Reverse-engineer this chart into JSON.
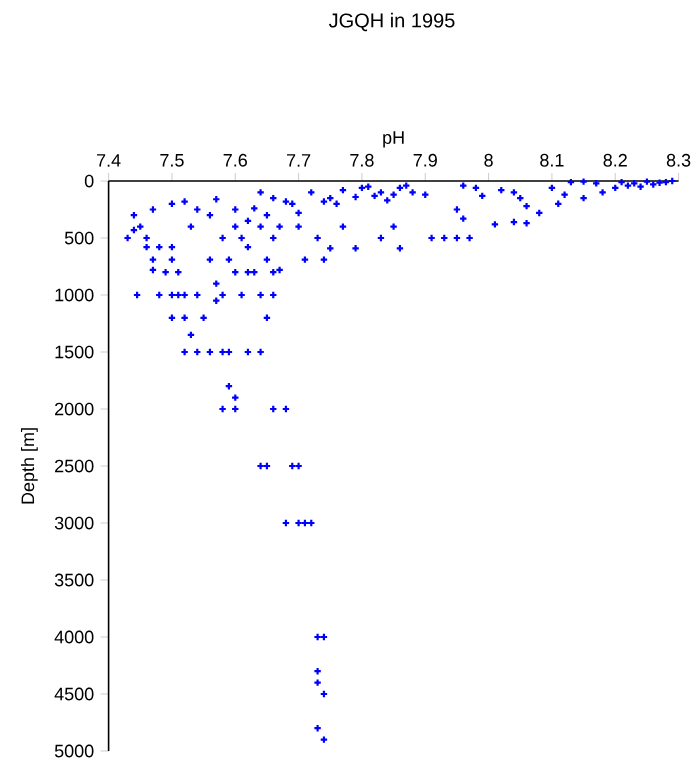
{
  "chart_data": {
    "type": "scatter",
    "title": "JGQH in 1995",
    "xlabel": "pH",
    "ylabel": "Depth [m]",
    "xlim": [
      7.4,
      8.3
    ],
    "xticks": [
      7.4,
      7.5,
      7.6,
      7.7,
      7.8,
      7.9,
      8,
      8.1,
      8.2,
      8.3
    ],
    "ylim": [
      5000,
      0
    ],
    "yticks": [
      0,
      500,
      1000,
      1500,
      2000,
      2500,
      3000,
      3500,
      4000,
      4500,
      5000
    ],
    "marker": "cross",
    "series": [
      {
        "color": "#0000ff",
        "x": [
          8.21,
          8.23,
          8.25,
          8.27,
          8.29,
          8.22,
          8.26,
          8.28,
          8.2,
          8.24,
          8.13,
          8.15,
          8.17,
          8.1,
          8.12,
          8.15,
          8.18,
          8.11,
          8.08,
          8.06,
          8.02,
          8.04,
          8.05,
          8.04,
          8.01,
          8.06,
          7.96,
          7.98,
          7.99,
          7.95,
          7.96,
          7.95,
          7.97,
          7.93,
          7.91,
          7.86,
          7.88,
          7.9,
          7.85,
          7.87,
          7.85,
          7.83,
          7.86,
          7.81,
          7.83,
          7.84,
          7.82,
          7.77,
          7.79,
          7.8,
          7.79,
          7.77,
          7.72,
          7.74,
          7.76,
          7.75,
          7.73,
          7.75,
          7.71,
          7.74,
          7.69,
          7.7,
          7.7,
          7.67,
          7.64,
          7.66,
          7.68,
          7.63,
          7.65,
          7.64,
          7.66,
          7.62,
          7.65,
          7.63,
          7.66,
          7.67,
          7.64,
          7.66,
          7.57,
          7.6,
          7.6,
          7.62,
          7.58,
          7.61,
          7.56,
          7.59,
          7.6,
          7.62,
          7.57,
          7.58,
          7.61,
          7.57,
          7.52,
          7.54,
          7.56,
          7.53,
          7.54,
          7.52,
          7.55,
          7.53,
          7.47,
          7.5,
          7.46,
          7.48,
          7.5,
          7.47,
          7.5,
          7.47,
          7.49,
          7.51,
          7.48,
          7.5,
          7.51,
          7.44,
          7.43,
          7.45,
          7.44,
          7.46,
          7.445,
          7.5,
          7.52,
          7.54,
          7.56,
          7.58,
          7.59,
          7.62,
          7.64,
          7.65,
          7.52,
          7.59,
          7.6,
          7.58,
          7.6,
          7.66,
          7.68,
          7.64,
          7.65,
          7.69,
          7.7,
          7.68,
          7.7,
          7.71,
          7.72,
          7.73,
          7.74,
          7.73,
          7.73,
          7.74,
          7.73,
          7.74
        ],
        "values": [
          10,
          20,
          5,
          15,
          0,
          40,
          30,
          10,
          60,
          50,
          10,
          5,
          20,
          60,
          120,
          150,
          100,
          200,
          280,
          220,
          80,
          100,
          150,
          360,
          380,
          370,
          40,
          60,
          130,
          250,
          330,
          500,
          500,
          500,
          500,
          60,
          100,
          120,
          120,
          40,
          400,
          500,
          590,
          50,
          100,
          170,
          130,
          80,
          140,
          60,
          590,
          400,
          100,
          180,
          200,
          150,
          500,
          590,
          690,
          690,
          200,
          280,
          400,
          400,
          100,
          150,
          180,
          240,
          300,
          400,
          500,
          580,
          690,
          800,
          800,
          780,
          1000,
          1000,
          160,
          250,
          400,
          350,
          500,
          500,
          690,
          690,
          800,
          800,
          900,
          1000,
          1000,
          1050,
          180,
          250,
          300,
          400,
          1000,
          1000,
          1200,
          1350,
          250,
          200,
          580,
          580,
          580,
          690,
          690,
          780,
          800,
          800,
          1000,
          1000,
          1000,
          300,
          500,
          400,
          430,
          500,
          1000,
          1200,
          1200,
          1500,
          1500,
          1500,
          1500,
          1500,
          1500,
          1200,
          1500,
          1800,
          1900,
          2000,
          2000,
          2000,
          2000,
          2500,
          2500,
          2500,
          2500,
          3000,
          3000,
          3000,
          3000,
          4000,
          4000,
          4300,
          4400,
          4500,
          4800,
          4900
        ]
      }
    ]
  }
}
